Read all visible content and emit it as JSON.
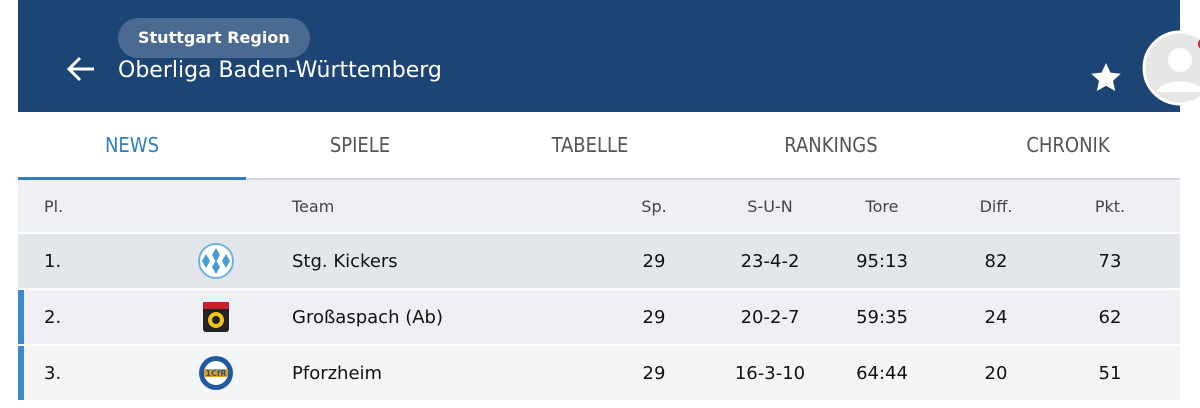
{
  "header": {
    "badge": "Stuttgart Region",
    "title": "Oberliga Baden-Württemberg"
  },
  "tabs": [
    "NEWS",
    "SPIELE",
    "TABELLE",
    "RANKINGS",
    "CHRONIK"
  ],
  "table": {
    "columns": [
      "Pl.",
      "Team",
      "Sp.",
      "S-U-N",
      "Tore",
      "Diff.",
      "Pkt."
    ],
    "rows": [
      [
        "1.",
        "Stg. Kickers",
        "29",
        "23-4-2",
        "95:13",
        "82",
        "73"
      ],
      [
        "2.",
        "Großaspach (Ab)",
        "29",
        "20-2-7",
        "59:35",
        "24",
        "62"
      ],
      [
        "3.",
        "Pforzheim",
        "29",
        "16-3-10",
        "64:44",
        "20",
        "51"
      ]
    ]
  }
}
